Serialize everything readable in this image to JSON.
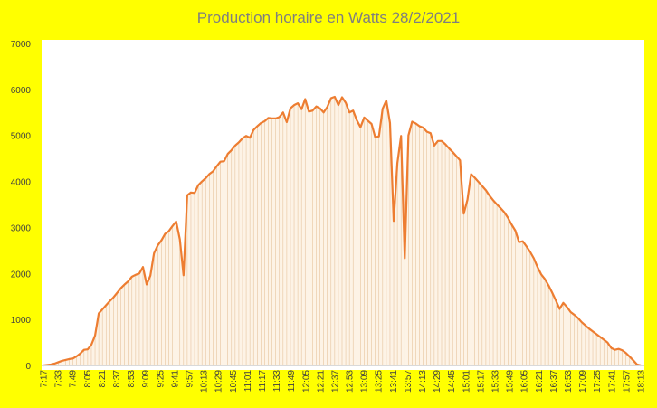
{
  "chart_data": {
    "type": "area",
    "title": "Production horaire en Watts 28/2/2021",
    "xlabel": "",
    "ylabel": "",
    "ylim": [
      0,
      7000
    ],
    "y_ticks": [
      "0",
      "1000",
      "2000",
      "3000",
      "4000",
      "5000",
      "6000",
      "7000"
    ],
    "grid": false,
    "legend": "none",
    "x_tick_labels": [
      "7:17",
      "7:33",
      "7:49",
      "8:05",
      "8:21",
      "8:37",
      "8:53",
      "9:09",
      "9:25",
      "9:41",
      "9:57",
      "10:13",
      "10:29",
      "10:45",
      "11:01",
      "11:17",
      "11:33",
      "11:49",
      "12:05",
      "12:21",
      "12:37",
      "12:53",
      "13:09",
      "13:25",
      "13:41",
      "13:57",
      "14:13",
      "14:29",
      "14:45",
      "15:01",
      "15:17",
      "15:33",
      "15:49",
      "16:05",
      "16:21",
      "16:37",
      "16:53",
      "17:09",
      "17:25",
      "17:41",
      "17:57",
      "18:13"
    ],
    "colors": {
      "line": "#ed7d31",
      "fill": "#fdf3e6",
      "drop": "#e6c49e",
      "background": "#ffff00",
      "plot": "#ffffff"
    },
    "values": [
      0,
      10,
      20,
      40,
      70,
      100,
      120,
      140,
      150,
      200,
      260,
      340,
      350,
      450,
      650,
      1130,
      1220,
      1310,
      1400,
      1480,
      1580,
      1680,
      1760,
      1830,
      1930,
      1970,
      2000,
      2140,
      1760,
      1950,
      2440,
      2610,
      2720,
      2860,
      2920,
      3030,
      3130,
      2740,
      1960,
      3700,
      3760,
      3750,
      3920,
      4000,
      4070,
      4160,
      4220,
      4330,
      4430,
      4440,
      4600,
      4680,
      4780,
      4850,
      4940,
      4990,
      4950,
      5120,
      5200,
      5270,
      5310,
      5380,
      5370,
      5370,
      5400,
      5500,
      5290,
      5590,
      5660,
      5700,
      5570,
      5790,
      5520,
      5540,
      5630,
      5590,
      5500,
      5620,
      5810,
      5840,
      5660,
      5830,
      5710,
      5500,
      5540,
      5330,
      5180,
      5390,
      5320,
      5250,
      4960,
      4980,
      5580,
      5760,
      5270,
      3140,
      4400,
      4990,
      2330,
      5000,
      5300,
      5260,
      5200,
      5170,
      5080,
      5050,
      4780,
      4880,
      4880,
      4810,
      4720,
      4640,
      4550,
      4460,
      3300,
      3600,
      4160,
      4080,
      3990,
      3900,
      3810,
      3690,
      3590,
      3500,
      3420,
      3330,
      3210,
      3060,
      2930,
      2680,
      2700,
      2590,
      2470,
      2330,
      2140,
      1980,
      1880,
      1740,
      1580,
      1410,
      1230,
      1360,
      1270,
      1160,
      1100,
      1030,
      940,
      870,
      800,
      740,
      680,
      620,
      560,
      500,
      380,
      340,
      360,
      330,
      270,
      190,
      110,
      20,
      0
    ]
  }
}
